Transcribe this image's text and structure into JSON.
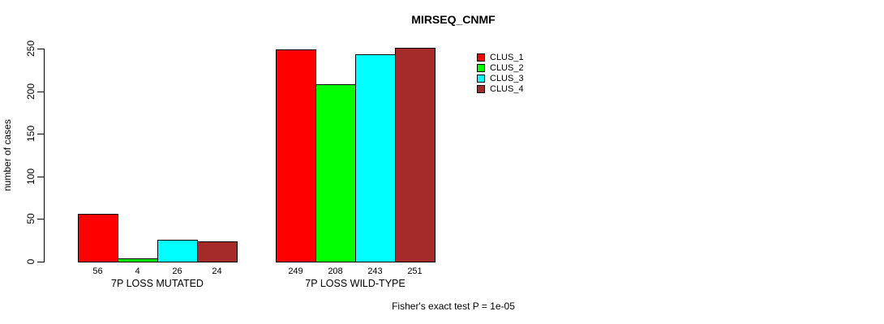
{
  "chart_data": {
    "type": "bar",
    "title": "MIRSEQ_CNMF",
    "ylabel": "number of cases",
    "xlabel": "",
    "categories": [
      "7P LOSS MUTATED",
      "7P LOSS WILD-TYPE"
    ],
    "series": [
      {
        "name": "CLUS_1",
        "color": "#FF0000",
        "values": [
          56,
          249
        ]
      },
      {
        "name": "CLUS_2",
        "color": "#00FF00",
        "values": [
          4,
          208
        ]
      },
      {
        "name": "CLUS_3",
        "color": "#00FFFF",
        "values": [
          26,
          243
        ]
      },
      {
        "name": "CLUS_4",
        "color": "#A52A2A",
        "values": [
          24,
          251
        ]
      }
    ],
    "yticks": [
      0,
      50,
      100,
      150,
      200,
      250
    ],
    "ylim": [
      0,
      250
    ],
    "bar_value_labels": [
      [
        56,
        4,
        26,
        24
      ],
      [
        249,
        208,
        243,
        251
      ]
    ],
    "legend_entries": [
      "CLUS_1",
      "CLUS_2",
      "CLUS_3",
      "CLUS_4"
    ],
    "legend_position": "top-right",
    "grid": false,
    "annotation": "Fisher's exact test P = 1e-05",
    "colors": {
      "axis": "#000000",
      "text": "#000000",
      "background": "#FFFFFF",
      "bar_border": "#000000"
    }
  }
}
